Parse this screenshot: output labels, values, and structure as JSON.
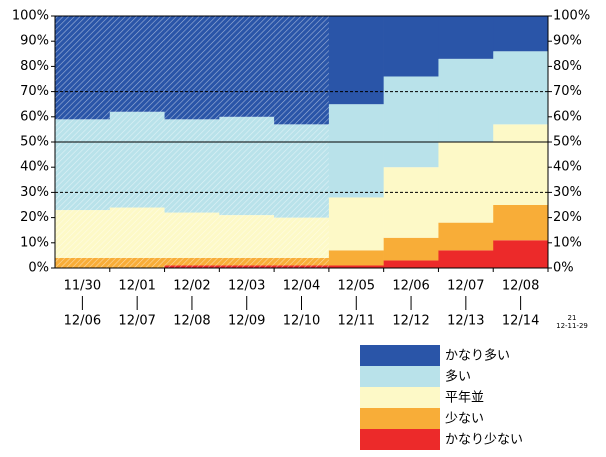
{
  "chart_data": {
    "type": "stacked-step",
    "categories": [
      [
        "11/30",
        "12/06"
      ],
      [
        "12/01",
        "12/07"
      ],
      [
        "12/02",
        "12/08"
      ],
      [
        "12/03",
        "12/09"
      ],
      [
        "12/04",
        "12/10"
      ],
      [
        "12/05",
        "12/11"
      ],
      [
        "12/06",
        "12/12"
      ],
      [
        "12/07",
        "12/13"
      ],
      [
        "12/08",
        "12/14"
      ]
    ],
    "series": [
      {
        "name": "かなり多い",
        "color": "#2a55a8",
        "values": [
          41,
          38,
          41,
          40,
          43,
          35,
          24,
          17,
          14
        ]
      },
      {
        "name": "多い",
        "color": "#b9e2ea",
        "values": [
          36,
          38,
          37,
          39,
          37,
          37,
          36,
          33,
          29
        ]
      },
      {
        "name": "平年並",
        "color": "#fdf9c7",
        "values": [
          19,
          20,
          18,
          17,
          16,
          21,
          28,
          32,
          32
        ]
      },
      {
        "name": "少ない",
        "color": "#f8ad38",
        "values": [
          4,
          4,
          3,
          3,
          3,
          6,
          9,
          11,
          14
        ]
      },
      {
        "name": "かなり少ない",
        "color": "#ec2a2a",
        "values": [
          0,
          0,
          1,
          1,
          1,
          1,
          3,
          7,
          11
        ]
      }
    ],
    "hatched": [
      true,
      true,
      true,
      true,
      true,
      false,
      false,
      false,
      false
    ],
    "ylim": [
      0,
      100
    ],
    "yticks": [
      {
        "value": 0,
        "label": "0%"
      },
      {
        "value": 10,
        "label": "10%"
      },
      {
        "value": 20,
        "label": "20%"
      },
      {
        "value": 30,
        "label": "30%"
      },
      {
        "value": 40,
        "label": "40%"
      },
      {
        "value": 50,
        "label": "50%"
      },
      {
        "value": 60,
        "label": "60%"
      },
      {
        "value": 70,
        "label": "70%"
      },
      {
        "value": 80,
        "label": "80%"
      },
      {
        "value": 90,
        "label": "90%"
      },
      {
        "value": 100,
        "label": "100%"
      }
    ],
    "y2lim": [
      100,
      0
    ],
    "y2ticks": [
      {
        "value": 100,
        "label": "100%"
      },
      {
        "value": 90,
        "label": "90%"
      },
      {
        "value": 80,
        "label": "80%"
      },
      {
        "value": 70,
        "label": "70%"
      },
      {
        "value": 60,
        "label": "60%"
      },
      {
        "value": 50,
        "label": "50%"
      },
      {
        "value": 40,
        "label": "40%"
      },
      {
        "value": 30,
        "label": "30%"
      },
      {
        "value": 20,
        "label": "20%"
      },
      {
        "value": 10,
        "label": "10%"
      },
      {
        "value": 0,
        "label": "0%"
      }
    ],
    "hlines": [
      {
        "value": 30,
        "style": "dashed"
      },
      {
        "value": 50,
        "style": "solid"
      },
      {
        "value": 70,
        "style": "dashed"
      }
    ],
    "annotation": [
      "21",
      "12-11-29"
    ]
  }
}
